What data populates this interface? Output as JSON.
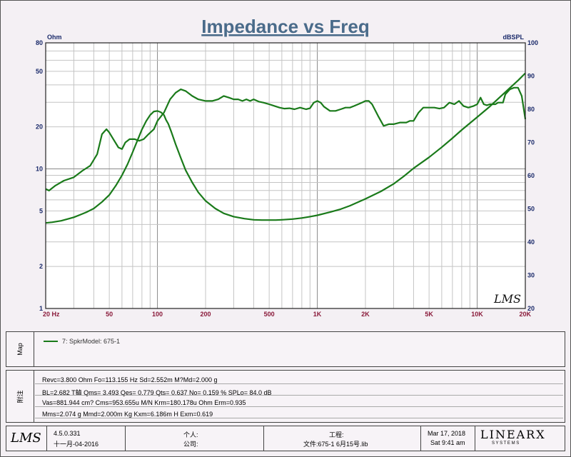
{
  "chart_data": {
    "type": "line",
    "title": "Impedance vs Freq",
    "left_unit": "Ohm",
    "right_unit": "dBSPL",
    "x_scale": "log",
    "y_left_scale": "log",
    "xlim": [
      20,
      20000
    ],
    "ylim_left": [
      1,
      80
    ],
    "ylim_right": [
      20,
      100
    ],
    "x_ticks": [
      {
        "value": 20,
        "label": "20  Hz"
      },
      {
        "value": 50,
        "label": "50"
      },
      {
        "value": 100,
        "label": "100"
      },
      {
        "value": 200,
        "label": "200"
      },
      {
        "value": 500,
        "label": "500"
      },
      {
        "value": 1000,
        "label": "1K"
      },
      {
        "value": 2000,
        "label": "2K"
      },
      {
        "value": 5000,
        "label": "5K"
      },
      {
        "value": 10000,
        "label": "10K"
      },
      {
        "value": 20000,
        "label": "20K"
      }
    ],
    "y_left_ticks": [
      {
        "value": 80,
        "label": "80"
      },
      {
        "value": 50,
        "label": "50"
      },
      {
        "value": 20,
        "label": "20"
      },
      {
        "value": 10,
        "label": "10"
      },
      {
        "value": 5,
        "label": "5"
      },
      {
        "value": 2,
        "label": "2"
      },
      {
        "value": 1,
        "label": "1"
      }
    ],
    "y_right_ticks": [
      {
        "value": 100,
        "label": "100"
      },
      {
        "value": 90,
        "label": "90"
      },
      {
        "value": 80,
        "label": "80"
      },
      {
        "value": 70,
        "label": "70"
      },
      {
        "value": 60,
        "label": "60"
      },
      {
        "value": 50,
        "label": "50"
      },
      {
        "value": 40,
        "label": "40"
      },
      {
        "value": 30,
        "label": "30"
      },
      {
        "value": 20,
        "label": "20"
      }
    ],
    "grid": true,
    "series": [
      {
        "name": "",
        "axis": "right",
        "color": "#1a7a1a",
        "x": [
          20,
          21,
          23,
          26,
          30,
          34,
          38,
          42,
          45,
          48,
          50,
          53,
          57,
          60,
          63,
          67,
          72,
          77,
          82,
          88,
          95,
          100,
          110,
          120,
          130,
          140,
          150,
          165,
          180,
          200,
          220,
          240,
          260,
          280,
          300,
          320,
          340,
          360,
          380,
          400,
          430,
          460,
          500,
          540,
          580,
          620,
          670,
          720,
          780,
          850,
          900,
          950,
          1000,
          1050,
          1100,
          1200,
          1300,
          1400,
          1500,
          1600,
          1700,
          1800,
          1900,
          2000,
          2100,
          2200,
          2400,
          2600,
          2800,
          3000,
          3300,
          3600,
          3800,
          4000,
          4300,
          4600,
          5000,
          5400,
          5800,
          6200,
          6700,
          7200,
          7700,
          8200,
          8800,
          9500,
          10000,
          10500,
          11000,
          11500,
          12000,
          12500,
          13000,
          13500,
          14000,
          14500,
          15000,
          16000,
          17000,
          18000,
          19000,
          20000
        ],
        "y": [
          56,
          55.5,
          57,
          58.5,
          59.5,
          61.5,
          63,
          66.5,
          72.5,
          74,
          73,
          71,
          68.5,
          68,
          70,
          71,
          71,
          70.5,
          71,
          72.5,
          74,
          76.5,
          79,
          83,
          85,
          86,
          85.5,
          84,
          83,
          82.5,
          82.5,
          83,
          84,
          83.5,
          83,
          83,
          82.5,
          83,
          82.5,
          83,
          82.3,
          82,
          81.5,
          81,
          80.5,
          80.2,
          80.3,
          80,
          80.5,
          80,
          80.3,
          82,
          82.5,
          82,
          80.8,
          79.5,
          79.5,
          80,
          80.5,
          80.5,
          81,
          81.5,
          82,
          82.5,
          82.5,
          81.5,
          78,
          75,
          75.5,
          75.5,
          76,
          76,
          76.5,
          76.5,
          79,
          80.5,
          80.5,
          80.5,
          80.2,
          80.5,
          82,
          81.5,
          82.5,
          81,
          80.5,
          81,
          81.5,
          83.5,
          81.5,
          81.2,
          81.5,
          81.5,
          81.5,
          82,
          82,
          82,
          84.5,
          86,
          86.5,
          86.5,
          84,
          77
        ]
      },
      {
        "name": "",
        "axis": "left",
        "color": "#1a7a1a",
        "x": [
          20,
          22,
          25,
          28,
          30,
          33,
          36,
          40,
          45,
          50,
          55,
          60,
          65,
          70,
          75,
          80,
          85,
          90,
          95,
          100,
          105,
          110,
          113,
          117,
          122,
          130,
          140,
          150,
          165,
          180,
          200,
          230,
          260,
          300,
          350,
          400,
          450,
          500,
          550,
          600,
          700,
          800,
          900,
          1000,
          1200,
          1400,
          1600,
          2000,
          2500,
          3000,
          3500,
          4000,
          5000,
          6000,
          7000,
          8000,
          10000,
          12000,
          14000,
          16000,
          18000,
          20000
        ],
        "y": [
          4.1,
          4.15,
          4.25,
          4.4,
          4.5,
          4.7,
          4.9,
          5.2,
          5.8,
          6.5,
          7.6,
          9.0,
          10.8,
          13.2,
          16.0,
          19.2,
          22.0,
          24.3,
          25.8,
          26.0,
          25.5,
          24.3,
          22.5,
          21.0,
          18.5,
          15.0,
          12.0,
          9.8,
          8.0,
          6.8,
          5.9,
          5.2,
          4.8,
          4.55,
          4.4,
          4.32,
          4.3,
          4.3,
          4.3,
          4.32,
          4.37,
          4.45,
          4.55,
          4.65,
          4.9,
          5.15,
          5.45,
          6.1,
          6.9,
          7.8,
          8.9,
          10.1,
          12.1,
          14.3,
          16.6,
          19.0,
          23.5,
          28.0,
          33.0,
          38.0,
          43.0,
          48.5
        ]
      }
    ]
  },
  "legend": {
    "tab_label": "Map",
    "entries": [
      {
        "label": "7: SpkrModel: 675-1",
        "color": "#1a7a1a"
      }
    ]
  },
  "params": {
    "tab_label": "附注",
    "lines": [
      "Revc=3.800 Ohm  Fo=113.155 Hz  Sd=2.552m M?Md=2.000 g",
      "BL=2.682 T鏀  Qms= 3.493  Qes= 0.779  Qts= 0.637  No= 0.159 %  SPLo= 84.0 dB",
      "Vas=881.944 cm? Cms=953.655u M/N  Krm=180.178u Ohm  Erm=0.935",
      "Mms=2.074 g  Mmd=2.000m Kg  Kxm=6.186m H  Exm=0.619"
    ]
  },
  "footer": {
    "lms_logo": "LMS",
    "version": "4.5.0.331",
    "build_date": "十一月-04-2016",
    "person_label": "个人:",
    "company_label": "公司:",
    "project_label": "工程:",
    "file_label": "文件:675-1 6月15号.lib",
    "date": "Mar 17, 2018",
    "time": "Sat  9:41 am",
    "brand": "LINEARX",
    "brand_sub": "S Y S T E M S"
  }
}
